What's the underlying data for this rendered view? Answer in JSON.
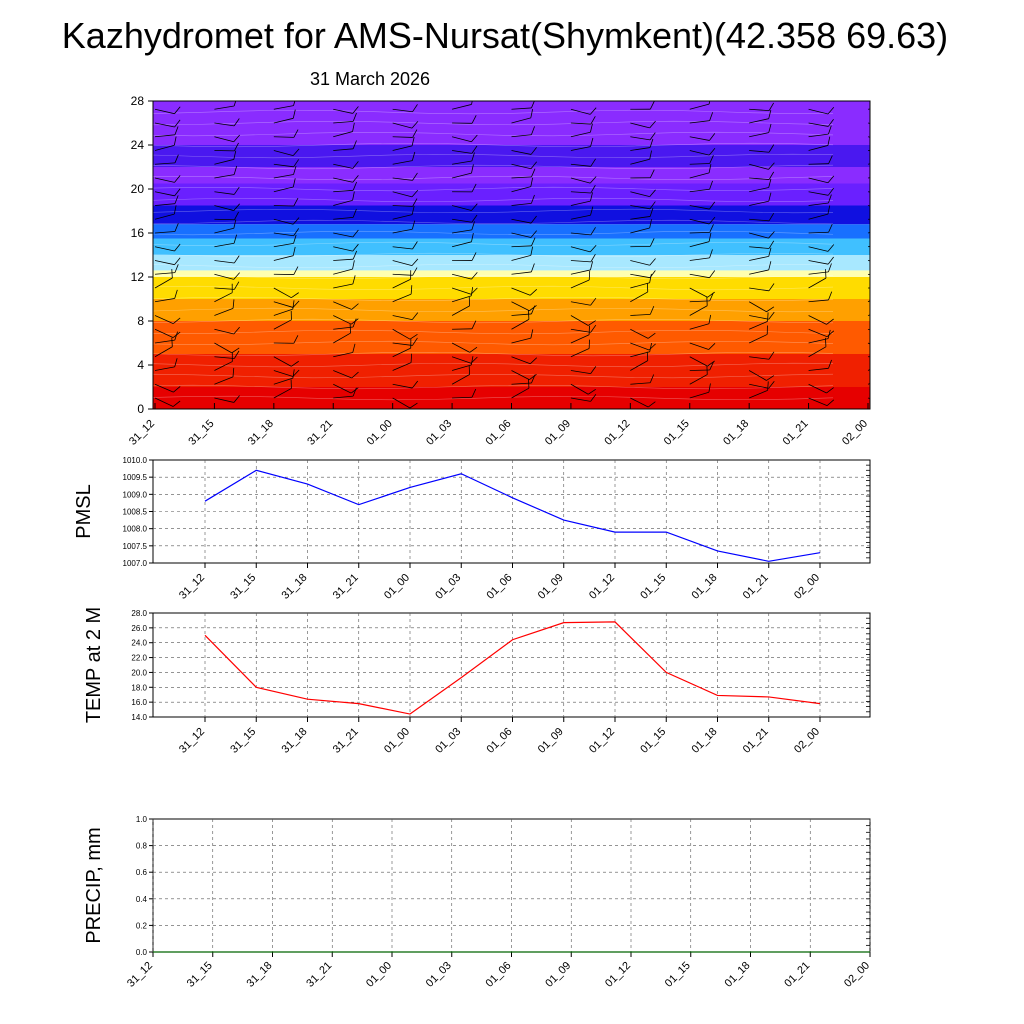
{
  "title": "Kazhydromet for AMS-Nursat(Shymkent)(42.358 69.63)",
  "subtitle": "31 March 2026",
  "times": [
    "31_12",
    "31_15",
    "31_18",
    "31_21",
    "01_00",
    "01_03",
    "01_06",
    "01_09",
    "01_12",
    "01_15",
    "01_18",
    "01_21",
    "02_00"
  ],
  "colors": {
    "pmsl_line": "#0000ff",
    "temp_line": "#ff0000",
    "precip_line": "#006400",
    "grid": "#555555"
  },
  "chart_data": [
    {
      "id": "cross-section",
      "type": "heatmap",
      "ylabel": "",
      "ylim": [
        0,
        28
      ],
      "yticks": [
        0,
        4,
        8,
        12,
        16,
        20,
        24,
        28
      ],
      "categories": [
        "31_12",
        "31_15",
        "31_18",
        "31_21",
        "01_00",
        "01_03",
        "01_06",
        "01_09",
        "01_12",
        "01_15",
        "01_18",
        "01_21",
        "02_00"
      ],
      "color_bands": [
        {
          "from": 0,
          "to": 2,
          "color": "#e60000"
        },
        {
          "from": 2,
          "to": 5,
          "color": "#f02000"
        },
        {
          "from": 5,
          "to": 8,
          "color": "#ff5a00"
        },
        {
          "from": 8,
          "to": 10,
          "color": "#ffa000"
        },
        {
          "from": 10,
          "to": 12,
          "color": "#ffdc00"
        },
        {
          "from": 12,
          "to": 12.6,
          "color": "#ffffb0"
        },
        {
          "from": 12.6,
          "to": 14,
          "color": "#a8e8ff"
        },
        {
          "from": 14,
          "to": 15.5,
          "color": "#40c0ff"
        },
        {
          "from": 15.5,
          "to": 16.8,
          "color": "#1870ff"
        },
        {
          "from": 16.8,
          "to": 18.5,
          "color": "#1010e0"
        },
        {
          "from": 18.5,
          "to": 20.5,
          "color": "#6a20ff"
        },
        {
          "from": 20.5,
          "to": 22,
          "color": "#8a2cff"
        },
        {
          "from": 22,
          "to": 24,
          "color": "#4a18f0"
        },
        {
          "from": 24,
          "to": 28,
          "color": "#8a2cff"
        }
      ]
    },
    {
      "id": "pmsl",
      "type": "line",
      "ylabel": "PMSL",
      "ylim": [
        1007.0,
        1010.0
      ],
      "yticks": [
        "1007.0",
        "1007.5",
        "1008.0",
        "1008.5",
        "1009.0",
        "1009.5",
        "1010.0"
      ],
      "categories": [
        "31_12",
        "31_15",
        "31_18",
        "31_21",
        "01_00",
        "01_03",
        "01_06",
        "01_09",
        "01_12",
        "01_15",
        "01_18",
        "01_21",
        "02_00"
      ],
      "values": [
        1008.8,
        1009.7,
        1009.3,
        1008.7,
        1009.2,
        1009.6,
        1008.9,
        1008.25,
        1007.9,
        1007.9,
        1007.35,
        1007.05,
        1007.3
      ],
      "grid": true
    },
    {
      "id": "temp",
      "type": "line",
      "ylabel": "TEMP at 2 M",
      "ylim": [
        14.0,
        28.0
      ],
      "yticks": [
        "14.0",
        "16.0",
        "18.0",
        "20.0",
        "22.0",
        "24.0",
        "26.0",
        "28.0"
      ],
      "categories": [
        "31_12",
        "31_15",
        "31_18",
        "31_21",
        "01_00",
        "01_03",
        "01_06",
        "01_09",
        "01_12",
        "01_15",
        "01_18",
        "01_21",
        "02_00"
      ],
      "values": [
        25.0,
        18.0,
        16.4,
        15.8,
        14.4,
        19.3,
        24.4,
        26.7,
        26.8,
        20.0,
        16.9,
        16.7,
        15.8
      ],
      "grid": true
    },
    {
      "id": "precip",
      "type": "line",
      "ylabel": "PRECIP, mm",
      "ylim": [
        0.0,
        1.0
      ],
      "yticks": [
        "0.0",
        "0.2",
        "0.4",
        "0.6",
        "0.8",
        "1.0"
      ],
      "categories": [
        "31_12",
        "31_15",
        "31_18",
        "31_21",
        "01_00",
        "01_03",
        "01_06",
        "01_09",
        "01_12",
        "01_15",
        "01_18",
        "01_21",
        "02_00"
      ],
      "values": [
        0,
        0,
        0,
        0,
        0,
        0,
        0,
        0,
        0,
        0,
        0,
        0,
        0
      ],
      "grid": true
    }
  ]
}
